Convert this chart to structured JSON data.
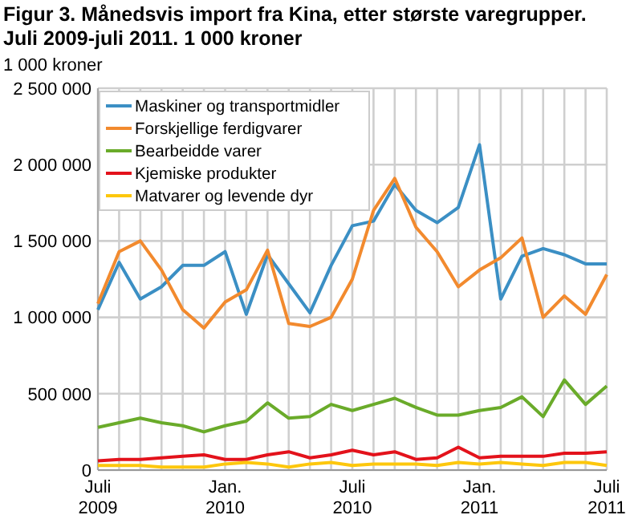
{
  "chart_data": {
    "type": "line",
    "title": "Figur 3. Månedsvis import fra Kina, etter største varegrupper. Juli 2009-juli 2011. 1 000 kroner",
    "ylabel": "1 000 kroner",
    "categories": [
      "Juli 2009",
      null,
      null,
      null,
      null,
      null,
      "Jan. 2010",
      null,
      null,
      null,
      null,
      null,
      "Juli 2010",
      null,
      null,
      null,
      null,
      null,
      "Jan. 2011",
      null,
      null,
      null,
      null,
      null,
      "Juli 2011"
    ],
    "series": [
      {
        "name": "Maskiner og transportmidler",
        "color": "#3b8fc4",
        "values": [
          1050000,
          1360000,
          1120000,
          1200000,
          1340000,
          1340000,
          1430000,
          1020000,
          1410000,
          1220000,
          1030000,
          1340000,
          1600000,
          1630000,
          1870000,
          1700000,
          1620000,
          1720000,
          2130000,
          1120000,
          1400000,
          1450000,
          1410000,
          1350000,
          1350000
        ]
      },
      {
        "name": "Forskjellige ferdigvarer",
        "color": "#f28a2e",
        "values": [
          1090000,
          1430000,
          1500000,
          1310000,
          1050000,
          930000,
          1100000,
          1180000,
          1440000,
          960000,
          940000,
          1000000,
          1250000,
          1700000,
          1910000,
          1590000,
          1430000,
          1200000,
          1310000,
          1390000,
          1520000,
          1000000,
          1140000,
          1020000,
          1280000
        ]
      },
      {
        "name": "Bearbeidde varer",
        "color": "#6aab2a",
        "values": [
          280000,
          310000,
          340000,
          310000,
          290000,
          250000,
          290000,
          320000,
          440000,
          340000,
          350000,
          430000,
          390000,
          430000,
          470000,
          410000,
          360000,
          360000,
          390000,
          410000,
          480000,
          350000,
          590000,
          430000,
          550000
        ]
      },
      {
        "name": "Kjemiske produkter",
        "color": "#e3121b",
        "values": [
          60000,
          70000,
          70000,
          80000,
          90000,
          100000,
          70000,
          70000,
          100000,
          120000,
          80000,
          100000,
          130000,
          100000,
          120000,
          70000,
          80000,
          150000,
          80000,
          90000,
          90000,
          90000,
          110000,
          110000,
          120000
        ]
      },
      {
        "name": "Matvarer og levende dyr",
        "color": "#fdc70c",
        "values": [
          30000,
          30000,
          30000,
          20000,
          20000,
          20000,
          40000,
          50000,
          40000,
          20000,
          40000,
          50000,
          30000,
          40000,
          40000,
          40000,
          30000,
          50000,
          40000,
          50000,
          40000,
          30000,
          50000,
          50000,
          30000
        ]
      }
    ],
    "ylim": [
      0,
      2500000
    ],
    "yticks": [
      0,
      {
        "value": 500000,
        "label": "500 000"
      },
      {
        "value": 1000000,
        "label": "1 000 000"
      },
      {
        "value": 1500000,
        "label": "1 500 000"
      },
      {
        "value": 2000000,
        "label": "2 000 000"
      },
      {
        "value": 2500000,
        "label": "2 500 000"
      }
    ],
    "grid": true,
    "legend": "top left",
    "marker": "none",
    "line_style": "solid"
  }
}
